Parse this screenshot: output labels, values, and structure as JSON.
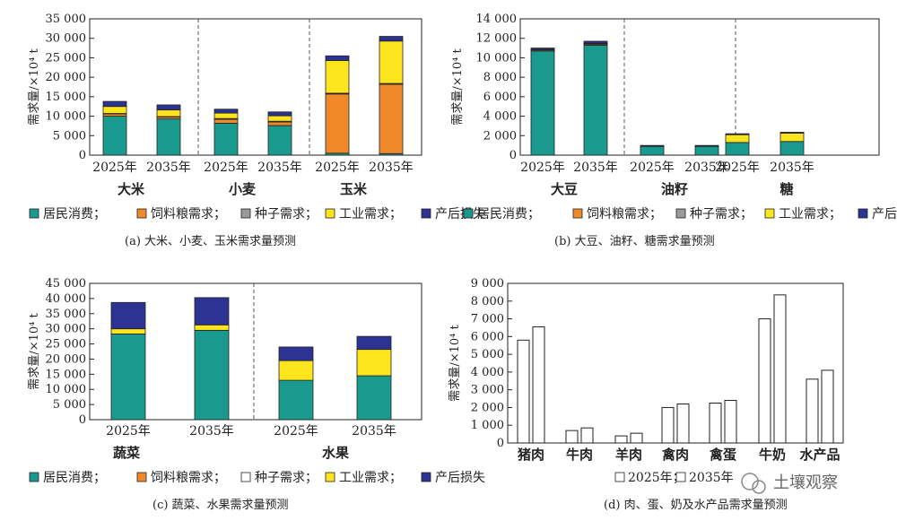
{
  "colors": {
    "居民消费": "#1a9a8e",
    "饲料粮需求": "#f0892a",
    "种子需求": "#9a9a9a",
    "工业需求": "#fce51c",
    "产后损失": "#2c3392",
    "seed_white": "#ffffff"
  },
  "watermark": "土壤观察",
  "chart_data": [
    {
      "type": "bar",
      "stacked": true,
      "caption": "(a) 大米、小麦、玉米需求量预测",
      "ylabel": "需求量/×10⁴ t",
      "ylim": [
        0,
        35000
      ],
      "yticks": [
        "0",
        "5 000",
        "10 000",
        "15 000",
        "20 000",
        "25 000",
        "30 000",
        "35 000"
      ],
      "groups": [
        "大米",
        "小麦",
        "玉米"
      ],
      "categories": [
        "2025年",
        "2035年",
        "2025年",
        "2035年",
        "2025年",
        "2035年"
      ],
      "legend": [
        "居民消费；",
        "饲料粮需求；",
        "种子需求；",
        "工业需求；",
        "产后损失"
      ],
      "series": [
        {
          "name": "居民消费",
          "values": [
            10000,
            9300,
            8200,
            7600,
            500,
            400
          ]
        },
        {
          "name": "饲料粮需求",
          "values": [
            600,
            500,
            1000,
            900,
            15200,
            17800
          ]
        },
        {
          "name": "种子需求",
          "values": [
            100,
            100,
            200,
            200,
            200,
            200
          ]
        },
        {
          "name": "工业需求",
          "values": [
            1800,
            1700,
            1400,
            1400,
            8400,
            10900
          ]
        },
        {
          "name": "产后损失",
          "values": [
            1300,
            1300,
            1000,
            1000,
            1200,
            1200
          ]
        }
      ]
    },
    {
      "type": "bar",
      "stacked": true,
      "caption": "(b) 大豆、油籽、糖需求量预测",
      "ylabel": "需求量/×10⁴ t",
      "ylim": [
        0,
        14000
      ],
      "yticks": [
        "0",
        "2 000",
        "4 000",
        "6 000",
        "8 000",
        "10 000",
        "12 000",
        "14 000"
      ],
      "groups": [
        "大豆",
        "油籽",
        "糖"
      ],
      "categories": [
        "2025年",
        "2035年",
        "2025年",
        "2035年",
        "2025年",
        "2035年"
      ],
      "legend": [
        "居民消费；",
        "饲料粮需求；",
        "种子需求；",
        "工业需求；",
        "产后损失"
      ],
      "series": [
        {
          "name": "居民消费",
          "values": [
            10700,
            11300,
            900,
            900,
            1300,
            1400
          ]
        },
        {
          "name": "饲料粮需求",
          "values": [
            100,
            100,
            0,
            0,
            0,
            0
          ]
        },
        {
          "name": "种子需求",
          "values": [
            50,
            50,
            0,
            0,
            0,
            0
          ]
        },
        {
          "name": "工业需求",
          "values": [
            0,
            50,
            0,
            0,
            800,
            850
          ]
        },
        {
          "name": "产后损失",
          "values": [
            150,
            200,
            100,
            100,
            100,
            100
          ]
        }
      ]
    },
    {
      "type": "bar",
      "stacked": true,
      "caption": "(c) 蔬菜、水果需求量预测",
      "ylabel": "需求量/×10⁴ t",
      "ylim": [
        0,
        45000
      ],
      "yticks": [
        "0",
        "5 000",
        "10 000",
        "15 000",
        "20 000",
        "25 000",
        "30 000",
        "35 000",
        "40 000",
        "45 000"
      ],
      "groups": [
        "蔬菜",
        "水果"
      ],
      "categories": [
        "2025年",
        "2035年",
        "2025年",
        "2035年"
      ],
      "legend": [
        "居民消费；",
        "饲料粮需求；",
        "种子需求；",
        "工业需求；",
        "产后损失"
      ],
      "series": [
        {
          "name": "居民消费",
          "values": [
            28300,
            29500,
            13000,
            14500
          ]
        },
        {
          "name": "饲料粮需求",
          "values": [
            0,
            0,
            0,
            0
          ]
        },
        {
          "name": "种子需求",
          "values": [
            0,
            0,
            0,
            0
          ]
        },
        {
          "name": "工业需求",
          "values": [
            1700,
            1800,
            6500,
            8700
          ]
        },
        {
          "name": "产后损失",
          "values": [
            8700,
            9000,
            4500,
            4300
          ]
        }
      ]
    },
    {
      "type": "bar",
      "stacked": false,
      "caption": "(d) 肉、蛋、奶及水产品需求量预测",
      "ylabel": "需求量/×10⁴ t",
      "ylim": [
        0,
        9000
      ],
      "yticks": [
        "0",
        "1 000",
        "2 000",
        "3 000",
        "4 000",
        "5 000",
        "6 000",
        "7 000",
        "8 000",
        "9 000"
      ],
      "categories": [
        "猪肉",
        "牛肉",
        "羊肉",
        "禽肉",
        "禽蛋",
        "牛奶",
        "水产品"
      ],
      "legend": [
        "2025年；",
        "2035年"
      ],
      "series": [
        {
          "name": "2025年",
          "values": [
            5800,
            700,
            400,
            2000,
            2250,
            7000,
            3600
          ]
        },
        {
          "name": "2035年",
          "values": [
            6550,
            850,
            550,
            2200,
            2400,
            8350,
            4100
          ]
        }
      ]
    }
  ]
}
